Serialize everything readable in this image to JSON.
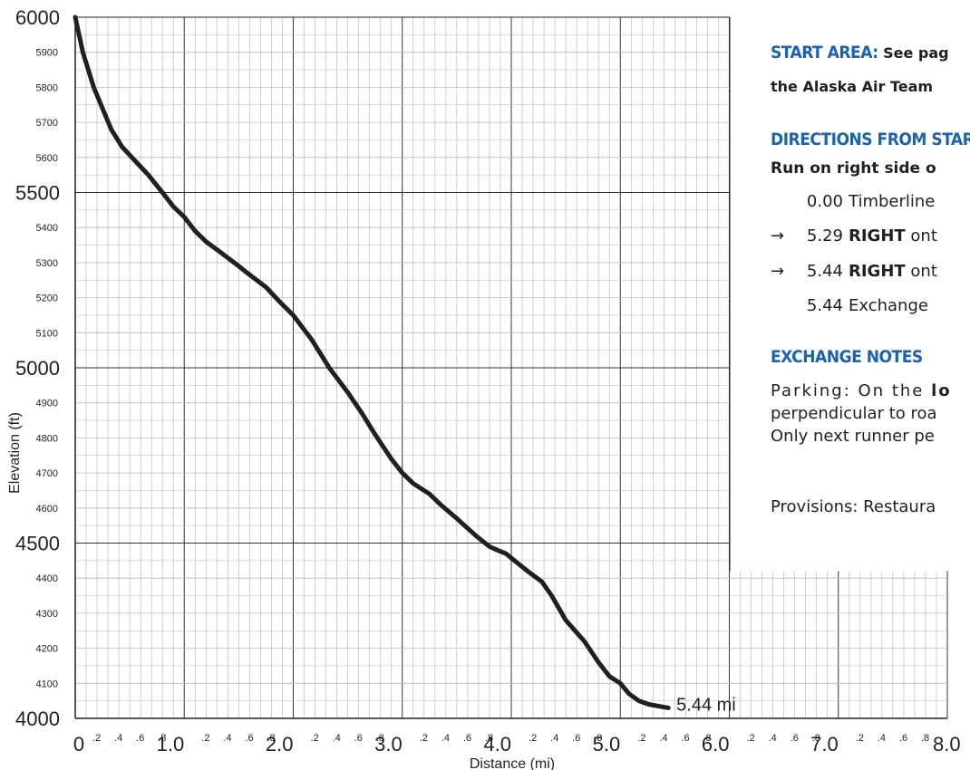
{
  "chart_data": {
    "type": "line",
    "xlabel": "Distance (mi)",
    "ylabel": "Elevation (ft)",
    "xlim": [
      0,
      8.0
    ],
    "ylim": [
      4000,
      6000
    ],
    "x_major_ticks": [
      "0",
      "1.0",
      "2.0",
      "3.0",
      "4.0",
      "5.0",
      "6.0",
      "7.0",
      "8.0"
    ],
    "x_minor_ticks": [
      ".2",
      ".4",
      ".6",
      ".8"
    ],
    "y_major_ticks": [
      "4000",
      "4500",
      "5000",
      "5500",
      "6000"
    ],
    "y_minor_ticks": [
      "4100",
      "4200",
      "4300",
      "4400",
      "4600",
      "4700",
      "4800",
      "4900",
      "5100",
      "5200",
      "5300",
      "5400",
      "5600",
      "5700",
      "5800",
      "5900"
    ],
    "grid": true,
    "series": [
      {
        "x": [
          0,
          0.07,
          0.17,
          0.33,
          0.43,
          0.58,
          0.67,
          0.8,
          0.9,
          1.0,
          1.1,
          1.2,
          1.33,
          1.5,
          1.58,
          1.75,
          1.87,
          2.0,
          2.17,
          2.33,
          2.5,
          2.63,
          2.75,
          2.9,
          3.0,
          3.1,
          3.25,
          3.35,
          3.5,
          3.68,
          3.8,
          3.87,
          3.95,
          4.03,
          4.15,
          4.28,
          4.37,
          4.5,
          4.67,
          4.8,
          4.9,
          5.0,
          5.08,
          5.17,
          5.26,
          5.44
        ],
        "y": [
          6000,
          5900,
          5800,
          5680,
          5630,
          5580,
          5550,
          5500,
          5460,
          5430,
          5390,
          5360,
          5330,
          5290,
          5270,
          5230,
          5190,
          5150,
          5080,
          5000,
          4930,
          4870,
          4810,
          4740,
          4700,
          4670,
          4640,
          4610,
          4570,
          4520,
          4490,
          4480,
          4470,
          4450,
          4420,
          4390,
          4350,
          4280,
          4220,
          4160,
          4120,
          4100,
          4070,
          4050,
          4040,
          4030
        ]
      }
    ],
    "annotations": [
      {
        "text": "5.44 mi",
        "x": 5.44,
        "y": 4030
      }
    ],
    "colors": {
      "line": "#231f20",
      "grid": "#bbbbbb",
      "grid_major": "#333333"
    }
  },
  "info": {
    "start_area_label": "Start Area:",
    "start_area_text": "See pag",
    "start_area_text2": "the Alaska Air Team",
    "directions_header": "Directions from Star",
    "directions_sub": "Run on right side o",
    "steps": [
      {
        "arrow": "",
        "mile": "0.00",
        "bold": "",
        "text": "Timberline"
      },
      {
        "arrow": "→",
        "mile": "5.29",
        "bold": "RIGHT",
        "text": "ont"
      },
      {
        "arrow": "→",
        "mile": "5.44",
        "bold": "RIGHT",
        "text": "ont"
      },
      {
        "arrow": "",
        "mile": "5.44",
        "bold": "",
        "text": "Exchange"
      }
    ],
    "exchange_header": "Exchange Notes",
    "parking_pre": "Parking: On the",
    "parking_bold": "lo",
    "parking_line2": "perpendicular to roa",
    "parking_line3": "Only next runner pe",
    "provisions": "Provisions: Restaura"
  },
  "colors": {
    "accent": "#1d62ad"
  }
}
